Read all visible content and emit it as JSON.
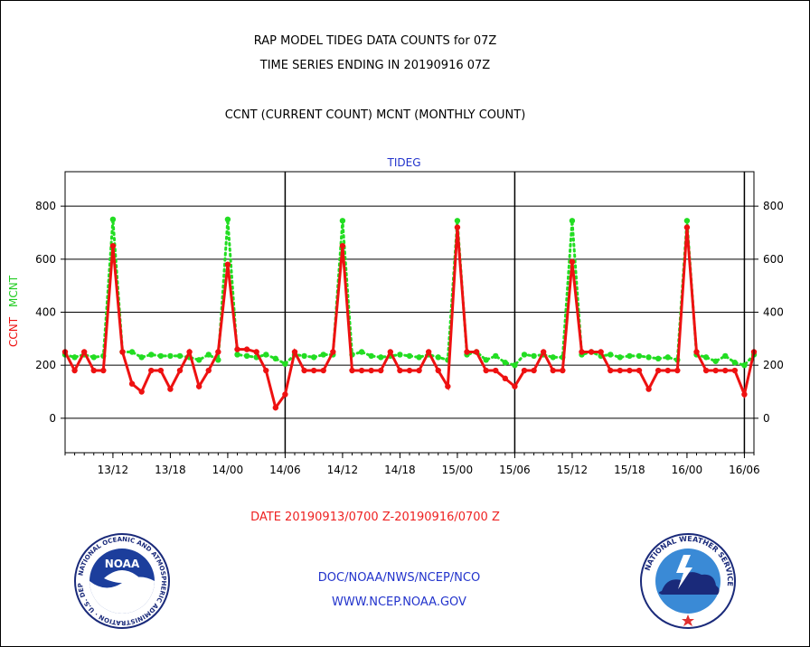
{
  "title_line1": "RAP MODEL TIDEG DATA COUNTS for 07Z",
  "title_line2": "TIME SERIES ENDING IN 20190916 07Z",
  "subtitle": "CCNT (CURRENT COUNT) MCNT (MONTHLY COUNT)",
  "footer": {
    "date_range": "DATE 20190913/0700 Z-20190916/0700 Z",
    "org": "DOC/NOAA/NWS/NCEP/NCO",
    "url": "WWW.NCEP.NOAA.GOV"
  },
  "logos": {
    "noaa_word": "NOAA",
    "noaa_ring": "NATIONAL OCEANIC AND ATMOSPHERIC ADMINISTRATION · U.S. DEPARTMENT OF COMMERCE",
    "nws_ring": "NATIONAL WEATHER SERVICE"
  },
  "chart_data": {
    "type": "line",
    "title": "TIDEG",
    "ylabel_left": "CCNT",
    "ylabel_right": "MCNT",
    "colors": {
      "CCNT": "#ee1111",
      "MCNT": "#22dd22",
      "grid": "#000000",
      "title": "#2233cc"
    },
    "ylim": [
      -130,
      930
    ],
    "yticks": [
      0,
      200,
      400,
      600,
      800
    ],
    "xlim": [
      0,
      72
    ],
    "xtick_labels": [
      "13/12",
      "13/18",
      "14/00",
      "14/06",
      "14/12",
      "14/18",
      "15/00",
      "15/06",
      "15/12",
      "15/18",
      "16/00",
      "16/06"
    ],
    "xtick_hours": [
      5,
      11,
      17,
      23,
      29,
      35,
      41,
      47,
      53,
      59,
      65,
      71
    ],
    "day_boundaries_hours": [
      23,
      47,
      71
    ],
    "grid": true,
    "series": [
      {
        "name": "CCNT",
        "x": [
          0,
          1,
          2,
          3,
          4,
          5,
          6,
          7,
          8,
          9,
          10,
          11,
          12,
          13,
          14,
          15,
          16,
          17,
          18,
          19,
          20,
          21,
          22,
          23,
          24,
          25,
          26,
          27,
          28,
          29,
          30,
          31,
          32,
          33,
          34,
          35,
          36,
          37,
          38,
          39,
          40,
          41,
          42,
          43,
          44,
          45,
          46,
          47,
          48,
          49,
          50,
          51,
          52,
          53,
          54,
          55,
          56,
          57,
          58,
          59,
          60,
          61,
          62,
          63,
          64,
          65,
          66,
          67,
          68,
          69,
          70,
          71,
          72
        ],
        "values": [
          250,
          180,
          250,
          180,
          180,
          650,
          250,
          130,
          100,
          180,
          180,
          110,
          180,
          250,
          120,
          180,
          250,
          580,
          260,
          260,
          250,
          180,
          40,
          90,
          250,
          180,
          180,
          180,
          250,
          650,
          180,
          180,
          180,
          180,
          250,
          180,
          180,
          180,
          250,
          180,
          120,
          720,
          250,
          250,
          180,
          180,
          150,
          120,
          180,
          180,
          250,
          180,
          180,
          590,
          250,
          250,
          250,
          180,
          180,
          180,
          180,
          110,
          180,
          180,
          180,
          720,
          250,
          180,
          180,
          180,
          180,
          90,
          250
        ]
      },
      {
        "name": "MCNT",
        "x": [
          0,
          1,
          2,
          3,
          4,
          5,
          6,
          7,
          8,
          9,
          10,
          11,
          12,
          13,
          14,
          15,
          16,
          17,
          18,
          19,
          20,
          21,
          22,
          23,
          24,
          25,
          26,
          27,
          28,
          29,
          30,
          31,
          32,
          33,
          34,
          35,
          36,
          37,
          38,
          39,
          40,
          41,
          42,
          43,
          44,
          45,
          46,
          47,
          48,
          49,
          50,
          51,
          52,
          53,
          54,
          55,
          56,
          57,
          58,
          59,
          60,
          61,
          62,
          63,
          64,
          65,
          66,
          67,
          68,
          69,
          70,
          71,
          72
        ],
        "values": [
          240,
          230,
          240,
          230,
          235,
          750,
          250,
          250,
          230,
          240,
          235,
          235,
          235,
          230,
          220,
          240,
          220,
          750,
          240,
          235,
          230,
          240,
          225,
          205,
          240,
          235,
          230,
          240,
          240,
          745,
          240,
          250,
          235,
          230,
          235,
          240,
          235,
          230,
          240,
          230,
          220,
          745,
          240,
          250,
          220,
          235,
          210,
          200,
          240,
          235,
          240,
          230,
          230,
          745,
          240,
          250,
          235,
          240,
          230,
          235,
          235,
          230,
          225,
          230,
          220,
          745,
          240,
          230,
          215,
          235,
          210,
          200,
          240
        ]
      }
    ]
  }
}
